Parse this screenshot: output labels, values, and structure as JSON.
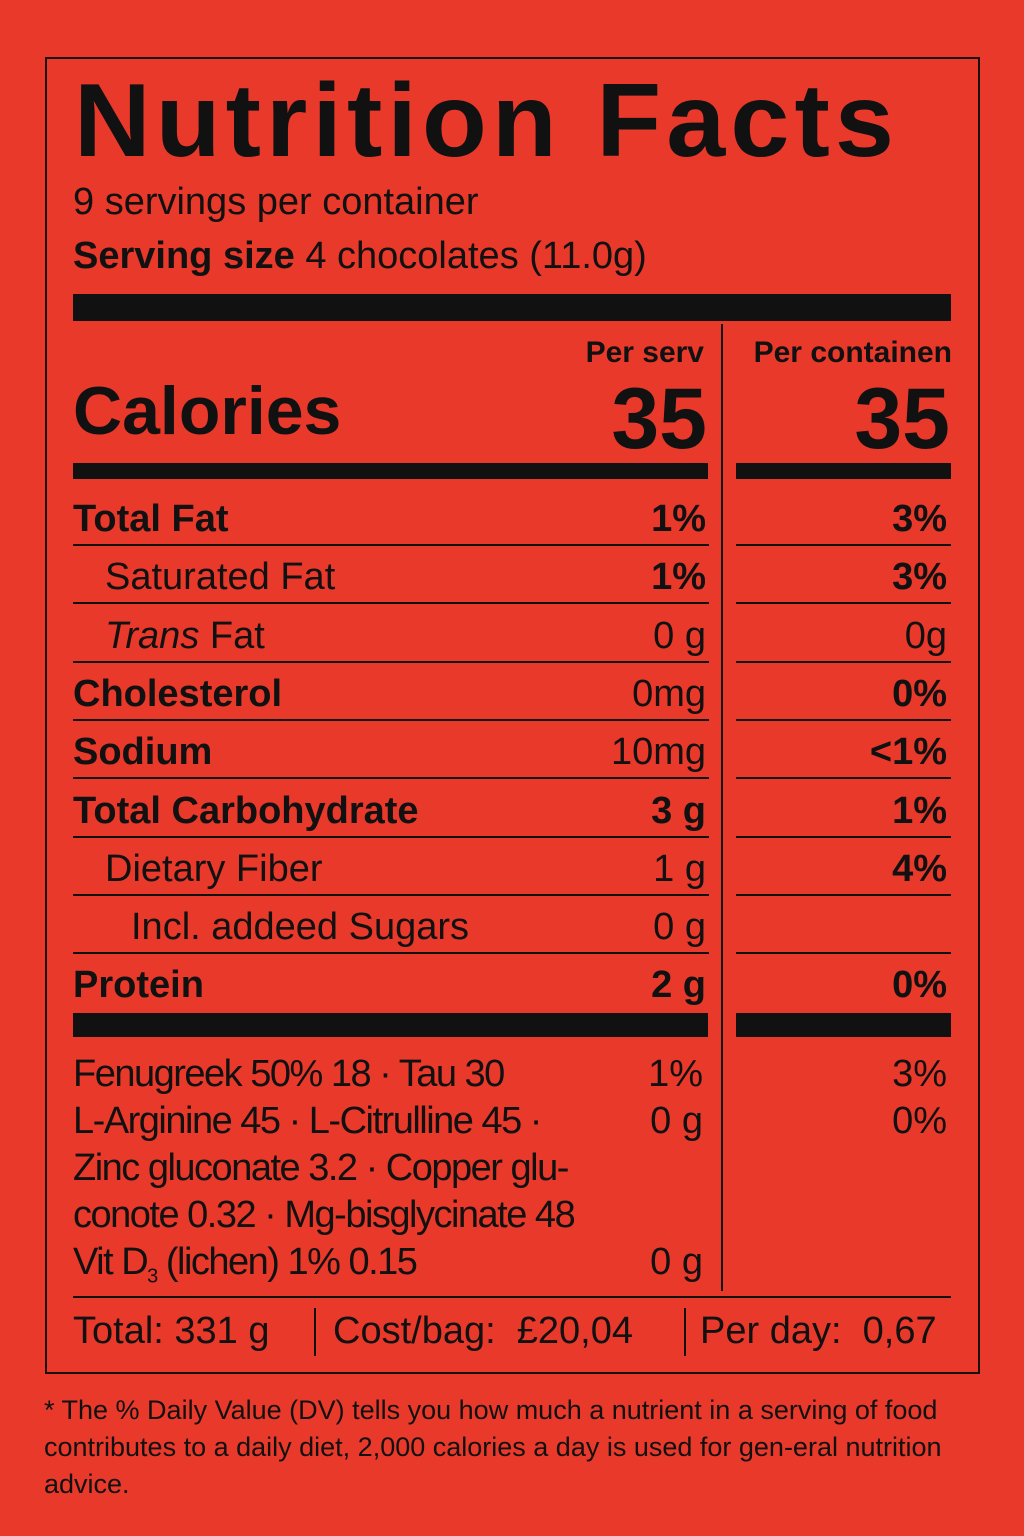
{
  "title": "Nutrition Facts",
  "servings_per_container": "9 servings per container",
  "serving_size_label": "Serving size",
  "serving_size_value": "4 chocolates (11.0g)",
  "columns": {
    "per_serving": "Per serv",
    "per_container": "Per containen"
  },
  "calories": {
    "label": "Calories",
    "per_serving": "35",
    "per_container": "35"
  },
  "rows": [
    {
      "label": "Total Fat",
      "bold": true,
      "indent": 0,
      "per_serving": "1%",
      "per_container": "3%",
      "v1bold": true,
      "v2bold": true
    },
    {
      "label": "Saturated Fat",
      "bold": false,
      "indent": 1,
      "per_serving": "1%",
      "per_container": "3%",
      "v1bold": true,
      "v2bold": true
    },
    {
      "label": "Trans Fat",
      "italic_prefix": "Trans",
      "bold": false,
      "indent": 1,
      "per_serving": "0 g",
      "per_container": "0g",
      "v1bold": false,
      "v2bold": false
    },
    {
      "label": "Cholesterol",
      "bold": true,
      "indent": 0,
      "per_serving": "0mg",
      "per_container": "0%",
      "v1bold": false,
      "v2bold": true
    },
    {
      "label": "Sodium",
      "bold": true,
      "indent": 0,
      "per_serving": "10mg",
      "per_container": "<1%",
      "v1bold": false,
      "v2bold": true
    },
    {
      "label": "Total Carbohydrate",
      "bold": true,
      "indent": 0,
      "per_serving": "3 g",
      "per_container": "1%",
      "v1bold": true,
      "v2bold": true
    },
    {
      "label": "Dietary Fiber",
      "bold": false,
      "indent": 1,
      "per_serving": "1 g",
      "per_container": "4%",
      "v1bold": false,
      "v2bold": true
    },
    {
      "label": "Incl. addeed Sugars",
      "bold": false,
      "indent": 2,
      "per_serving": "0 g",
      "per_container": "",
      "v1bold": false,
      "v2bold": false
    },
    {
      "label": "Protein",
      "bold": true,
      "indent": 0,
      "per_serving": "2 g",
      "per_container": "0%",
      "v1bold": true,
      "v2bold": true
    }
  ],
  "supplements": [
    {
      "text": "Fenugreek 50% 18 · Tau 30",
      "per_serving": "1%",
      "per_container": "3%"
    },
    {
      "text": "L-Arginine 45 · L-Citrulline 45 ·",
      "per_serving": "0 g",
      "per_container": "0%"
    },
    {
      "text": "Zinc gluconate 3.2 · Copper glu-",
      "per_serving": "",
      "per_container": ""
    },
    {
      "text": "conote 0.32 · Mg-bisglycinate 48",
      "per_serving": "",
      "per_container": ""
    },
    {
      "text_pre": "Vit D",
      "text_sub": "3",
      "text_post": " (lichen) 1% 0.15",
      "per_serving": "0 g",
      "per_container": ""
    }
  ],
  "summary": {
    "total": "Total: 331 g",
    "cost": "Cost/bag:  £20,04",
    "per_day": "Per day:  0,67"
  },
  "footnote": "* The % Daily Value (DV) tells you how much a nutrient in a serving of food contributes to a daily diet, 2,000 calories a day is used for gen-eral nutrition advice.",
  "colors": {
    "background": "#e8392b",
    "ink": "#111111"
  }
}
